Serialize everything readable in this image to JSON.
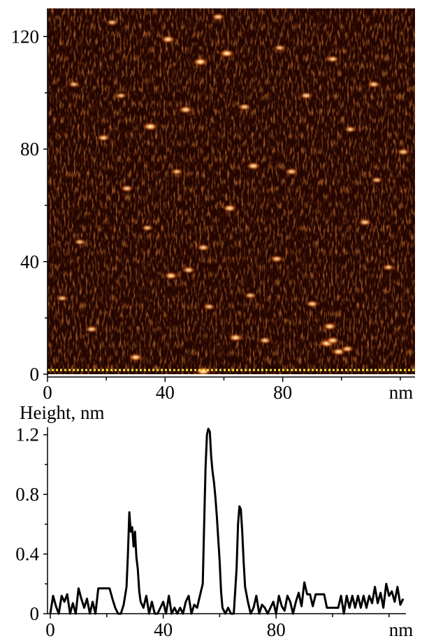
{
  "chart_data": [
    {
      "type": "heatmap",
      "title": "",
      "xlabel": "",
      "ylabel": "",
      "x_unit": "nm",
      "xlim": [
        0,
        125
      ],
      "ylim": [
        0,
        130
      ],
      "x_ticks": [
        "0",
        "40",
        "80"
      ],
      "y_ticks": [
        "0",
        "40",
        "80",
        "120"
      ],
      "colormap": [
        "#000000",
        "#3a0a00",
        "#8a2a05",
        "#d06a20",
        "#ffd8a0",
        "#fffaf0"
      ],
      "profile_line": {
        "y": 1,
        "style": "dotted",
        "color": "#f5e642"
      },
      "features": [
        {
          "x": 53,
          "y": 1,
          "h": 1.0
        },
        {
          "x": 95,
          "y": 11,
          "h": 0.9
        },
        {
          "x": 97,
          "y": 12,
          "h": 0.8
        },
        {
          "x": 99,
          "y": 8,
          "h": 0.8
        },
        {
          "x": 102,
          "y": 9,
          "h": 0.7
        },
        {
          "x": 96,
          "y": 17,
          "h": 0.8
        },
        {
          "x": 52,
          "y": 111,
          "h": 0.9
        },
        {
          "x": 61,
          "y": 114,
          "h": 0.9
        },
        {
          "x": 35,
          "y": 88,
          "h": 0.9
        },
        {
          "x": 47,
          "y": 94,
          "h": 0.8
        },
        {
          "x": 62,
          "y": 59,
          "h": 0.8
        },
        {
          "x": 70,
          "y": 74,
          "h": 0.8
        },
        {
          "x": 83,
          "y": 72,
          "h": 0.7
        },
        {
          "x": 41,
          "y": 119,
          "h": 0.8
        },
        {
          "x": 58,
          "y": 127,
          "h": 0.7
        },
        {
          "x": 42,
          "y": 35,
          "h": 0.8
        },
        {
          "x": 48,
          "y": 37,
          "h": 0.7
        },
        {
          "x": 30,
          "y": 6,
          "h": 0.8
        },
        {
          "x": 64,
          "y": 13,
          "h": 0.8
        },
        {
          "x": 74,
          "y": 12,
          "h": 0.7
        },
        {
          "x": 15,
          "y": 16,
          "h": 0.7
        },
        {
          "x": 19,
          "y": 84,
          "h": 0.7
        },
        {
          "x": 27,
          "y": 66,
          "h": 0.7
        },
        {
          "x": 53,
          "y": 45,
          "h": 0.7
        },
        {
          "x": 78,
          "y": 41,
          "h": 0.7
        },
        {
          "x": 90,
          "y": 25,
          "h": 0.7
        },
        {
          "x": 108,
          "y": 54,
          "h": 0.7
        },
        {
          "x": 88,
          "y": 99,
          "h": 0.7
        },
        {
          "x": 111,
          "y": 103,
          "h": 0.7
        },
        {
          "x": 97,
          "y": 112,
          "h": 0.7
        },
        {
          "x": 121,
          "y": 79,
          "h": 0.7
        },
        {
          "x": 116,
          "y": 38,
          "h": 0.6
        },
        {
          "x": 9,
          "y": 103,
          "h": 0.6
        },
        {
          "x": 22,
          "y": 125,
          "h": 0.6
        },
        {
          "x": 11,
          "y": 47,
          "h": 0.6
        },
        {
          "x": 34,
          "y": 52,
          "h": 0.6
        },
        {
          "x": 55,
          "y": 24,
          "h": 0.6
        },
        {
          "x": 69,
          "y": 28,
          "h": 0.6
        },
        {
          "x": 67,
          "y": 95,
          "h": 0.7
        },
        {
          "x": 79,
          "y": 116,
          "h": 0.6
        },
        {
          "x": 103,
          "y": 87,
          "h": 0.6
        },
        {
          "x": 112,
          "y": 69,
          "h": 0.6
        },
        {
          "x": 5,
          "y": 27,
          "h": 0.6
        },
        {
          "x": 25,
          "y": 99,
          "h": 0.6
        },
        {
          "x": 44,
          "y": 72,
          "h": 0.6
        }
      ]
    },
    {
      "type": "line",
      "title": "",
      "ylabel": "Height, nm",
      "x_unit": "nm",
      "xlim": [
        0,
        125
      ],
      "ylim": [
        0,
        1.25
      ],
      "x_ticks": [
        "0",
        "40",
        "80"
      ],
      "y_ticks": [
        "0",
        "0.4",
        "0.8",
        "1.2"
      ],
      "series": [
        {
          "x": [
            0,
            1,
            2,
            3,
            4,
            5,
            6,
            7,
            8,
            9,
            10,
            11,
            12,
            13,
            14,
            15,
            16,
            17,
            18,
            19,
            20,
            21,
            22,
            23,
            24,
            25,
            26,
            27,
            27.5,
            28,
            28.5,
            29,
            29.5,
            30,
            30.5,
            31,
            31.5,
            32,
            33,
            34,
            35,
            36,
            37,
            38,
            39,
            40,
            41,
            42,
            43,
            44,
            45,
            46,
            47,
            48,
            49,
            50,
            51,
            52,
            53,
            54,
            54.5,
            55,
            55.5,
            56,
            56.5,
            57,
            57.5,
            58,
            58.5,
            59,
            59.5,
            60,
            60.5,
            61,
            62,
            63,
            64,
            65,
            66,
            66.5,
            67,
            67.5,
            68,
            68.5,
            69,
            70,
            71,
            72,
            73,
            74,
            75,
            76,
            77,
            78,
            79,
            80,
            81,
            82,
            83,
            84,
            85,
            86,
            87,
            88,
            89,
            90,
            91,
            92,
            93,
            94,
            95,
            96,
            97,
            98,
            99,
            100,
            101,
            102,
            103,
            104,
            105,
            106,
            107,
            108,
            109,
            110,
            111,
            112,
            113,
            114,
            115,
            116,
            117,
            118,
            119,
            120,
            121,
            122,
            123,
            124,
            125
          ],
          "y": [
            0.0,
            0.12,
            0.05,
            0.0,
            0.12,
            0.08,
            0.13,
            0.0,
            0.07,
            0.0,
            0.17,
            0.1,
            0.04,
            0.1,
            0.0,
            0.08,
            0.0,
            0.17,
            0.17,
            0.17,
            0.17,
            0.17,
            0.1,
            0.04,
            0.0,
            0.0,
            0.06,
            0.18,
            0.4,
            0.68,
            0.55,
            0.58,
            0.45,
            0.55,
            0.38,
            0.3,
            0.15,
            0.08,
            0.04,
            0.12,
            0.0,
            0.08,
            0.0,
            0.0,
            0.04,
            0.08,
            0.0,
            0.12,
            0.0,
            0.04,
            0.0,
            0.04,
            0.0,
            0.08,
            0.12,
            0.0,
            0.06,
            0.04,
            0.12,
            0.2,
            0.6,
            0.98,
            1.2,
            1.24,
            1.22,
            1.05,
            0.95,
            0.88,
            0.78,
            0.65,
            0.5,
            0.35,
            0.15,
            0.04,
            0.0,
            0.04,
            0.0,
            0.0,
            0.3,
            0.6,
            0.72,
            0.7,
            0.55,
            0.35,
            0.18,
            0.08,
            0.0,
            0.04,
            0.12,
            0.0,
            0.06,
            0.04,
            0.0,
            0.04,
            0.08,
            0.0,
            0.12,
            0.05,
            0.02,
            0.12,
            0.08,
            0.0,
            0.08,
            0.14,
            0.05,
            0.21,
            0.13,
            0.13,
            0.05,
            0.13,
            0.13,
            0.13,
            0.13,
            0.04,
            0.04,
            0.04,
            0.04,
            0.04,
            0.12,
            0.0,
            0.12,
            0.04,
            0.12,
            0.04,
            0.12,
            0.04,
            0.12,
            0.04,
            0.12,
            0.07,
            0.18,
            0.07,
            0.14,
            0.04,
            0.2,
            0.12,
            0.15,
            0.08,
            0.18,
            0.06,
            0.1
          ]
        }
      ]
    }
  ]
}
